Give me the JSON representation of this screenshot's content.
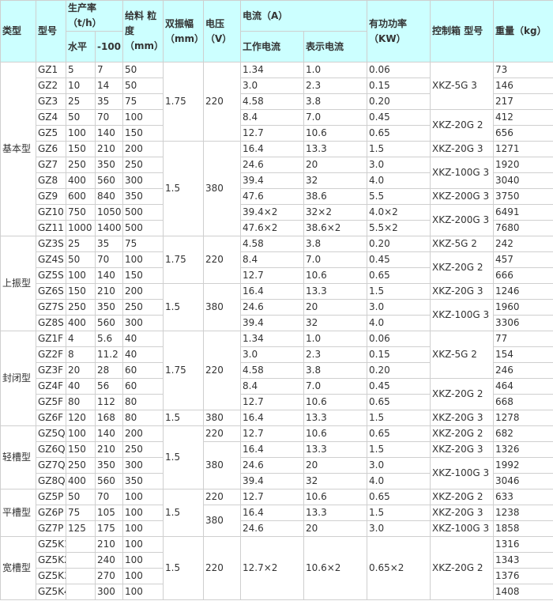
{
  "header": {
    "type": "类型",
    "model": "型号",
    "capacity": "生产率（t/h）",
    "horizontal": "水平",
    "neg10": "-100",
    "feed": "给料 粒度（mm）",
    "amplitude": "双振幅（mm）",
    "voltage": "电压（V）",
    "current": "电流（A）",
    "work_current": "工作电流",
    "indicator_current": "表示电流",
    "power": "有功功率（KW）",
    "control_box": "控制箱 型号",
    "weight": "重量（kg）"
  },
  "header_color": "#ccffff",
  "rows": [
    [
      {
        "v": "基本型",
        "rs": 11
      },
      "GZ1",
      "5",
      "7",
      "50",
      {
        "v": "1.75",
        "rs": 5
      },
      {
        "v": "220",
        "rs": 5
      },
      "1.34",
      "1.0",
      "0.06",
      {
        "v": "XKZ-5G 3",
        "rs": 3
      },
      "73"
    ],
    [
      "GZ2",
      "10",
      "14",
      "50",
      "3.0",
      "2.3",
      "0.15",
      "146"
    ],
    [
      "GZ3",
      "25",
      "35",
      "75",
      "4.58",
      "3.8",
      "0.20",
      "217"
    ],
    [
      "GZ4",
      "50",
      "70",
      "100",
      "8.4",
      "7.0",
      "0.45",
      {
        "v": "XKZ-20G 2",
        "rs": 2
      },
      "412"
    ],
    [
      "GZ5",
      "100",
      "140",
      "150",
      "12.7",
      "10.6",
      "0.65",
      "656"
    ],
    [
      "GZ6",
      "150",
      "210",
      "200",
      {
        "v": "1.5",
        "rs": 6
      },
      {
        "v": "380",
        "rs": 6
      },
      "16.4",
      "13.3",
      "1.5",
      "XKZ-20G 3",
      "1271"
    ],
    [
      "GZ7",
      "250",
      "350",
      "250",
      "24.6",
      "20",
      "3.0",
      {
        "v": "XKZ-100G 3",
        "rs": 2
      },
      "1920"
    ],
    [
      "GZ8",
      "400",
      "560",
      "300",
      "39.4",
      "32",
      "4.0",
      "3040"
    ],
    [
      "GZ9",
      "600",
      "840",
      "350",
      "47.6",
      "38.6",
      "5.5",
      "XKZ-200G 3",
      "3750"
    ],
    [
      "GZ10",
      "750",
      "1050",
      "500",
      "39.4×2",
      "32×2",
      "4.0×2",
      {
        "v": "XKZ-200G 3",
        "rs": 2
      },
      "6491"
    ],
    [
      "GZ11",
      "1000",
      "1400",
      "500",
      "47.6×2",
      "38.6×2",
      "5.5×2",
      "7680"
    ],
    [
      {
        "v": "上振型",
        "rs": 6
      },
      "GZ3S",
      "25",
      "35",
      "75",
      {
        "v": "1.75",
        "rs": 3
      },
      {
        "v": "220",
        "rs": 3
      },
      "4.58",
      "3.8",
      "0.20",
      "XKZ-5G 2",
      "242"
    ],
    [
      "GZ4S",
      "50",
      "70",
      "100",
      "8.4",
      "7.0",
      "0.45",
      {
        "v": "XKZ-20G 2",
        "rs": 2
      },
      "457"
    ],
    [
      "GZ5S",
      "100",
      "140",
      "150",
      "12.7",
      "10.6",
      "0.65",
      "666"
    ],
    [
      "GZ6S",
      "150",
      "210",
      "200",
      {
        "v": "1.5",
        "rs": 3
      },
      {
        "v": "380",
        "rs": 3
      },
      "16.4",
      "13.3",
      "1.5",
      "XKZ-20G 3",
      "1246"
    ],
    [
      "GZ7S",
      "250",
      "350",
      "250",
      "24.6",
      "20",
      "3.0",
      {
        "v": "XKZ-100G 3",
        "rs": 2
      },
      "1960"
    ],
    [
      "GZ8S",
      "400",
      "560",
      "300",
      "39.4",
      "32",
      "4.0",
      "3306"
    ],
    [
      {
        "v": "封闭型",
        "rs": 6
      },
      "GZ1F",
      "4",
      "5.6",
      "40",
      {
        "v": "1.75",
        "rs": 5
      },
      {
        "v": "220",
        "rs": 5
      },
      "1.34",
      "1.0",
      "0.06",
      {
        "v": "XKZ-5G 2",
        "rs": 3
      },
      "77"
    ],
    [
      "GZ2F",
      "8",
      "11.2",
      "40",
      "3.0",
      "2.3",
      "0.15",
      "154"
    ],
    [
      "GZ3F",
      "20",
      "28",
      "60",
      "4.58",
      "3.8",
      "0.20",
      "246"
    ],
    [
      "GZ4F",
      "40",
      "56",
      "60",
      "8.4",
      "7.0",
      "0.45",
      {
        "v": "XKZ-20G 2",
        "rs": 2
      },
      "464"
    ],
    [
      "GZ5F",
      "80",
      "112",
      "80",
      "12.7",
      "10.6",
      "0.65",
      "668"
    ],
    [
      "GZ6F",
      "120",
      "168",
      "80",
      "1.5",
      "380",
      "16.4",
      "13.3",
      "1.5",
      "XKZ-20G 3",
      "1278"
    ],
    [
      {
        "v": "轻槽型",
        "rs": 4
      },
      "GZ5Q",
      "100",
      "140",
      "200",
      {
        "v": "1.5",
        "rs": 4
      },
      "220",
      "12.7",
      "10.6",
      "0.65",
      "XKZ-20G 2",
      "682"
    ],
    [
      "GZ6Q",
      "150",
      "210",
      "250",
      {
        "v": "380",
        "rs": 3
      },
      "16.4",
      "13.3",
      "1.5",
      "XKZ-20G 3",
      "1326"
    ],
    [
      "GZ7Q",
      "250",
      "350",
      "300",
      "24.6",
      "20",
      "3.0",
      {
        "v": "XKZ-100G 3",
        "rs": 2
      },
      "1992"
    ],
    [
      "GZ8Q",
      "400",
      "560",
      "350",
      "39.4",
      "32",
      "4.0",
      "3046"
    ],
    [
      {
        "v": "平槽型",
        "rs": 3
      },
      "GZ5P",
      "50",
      "70",
      "100",
      {
        "v": "1.5",
        "rs": 3
      },
      "220",
      "12.7",
      "10.6",
      "0.65",
      "XKZ-20G 2",
      "633"
    ],
    [
      "GZ6P",
      "75",
      "105",
      "100",
      {
        "v": "380",
        "rs": 2
      },
      "16.4",
      "13.3",
      "1.5",
      "XKZ-20G 3",
      "1238"
    ],
    [
      "GZ7P",
      "125",
      "175",
      "100",
      "24.6",
      "20",
      "3.0",
      "XKZ-100G 3",
      "1858"
    ],
    [
      {
        "v": "宽槽型",
        "rs": 4
      },
      "GZ5K1",
      "",
      "210",
      "100",
      {
        "v": "1.5",
        "rs": 4
      },
      {
        "v": "220",
        "rs": 4
      },
      {
        "v": "12.7×2",
        "rs": 4
      },
      {
        "v": "10.6×2",
        "rs": 4
      },
      {
        "v": "0.65×2",
        "rs": 4
      },
      {
        "v": "XKZ-20G 2",
        "rs": 4
      },
      "1316"
    ],
    [
      "GZ5K2",
      "",
      "240",
      "100",
      "1343"
    ],
    [
      "GZ5K3",
      "",
      "270",
      "100",
      "1376"
    ],
    [
      "GZ5K4",
      "",
      "300",
      "100",
      "1408"
    ]
  ]
}
